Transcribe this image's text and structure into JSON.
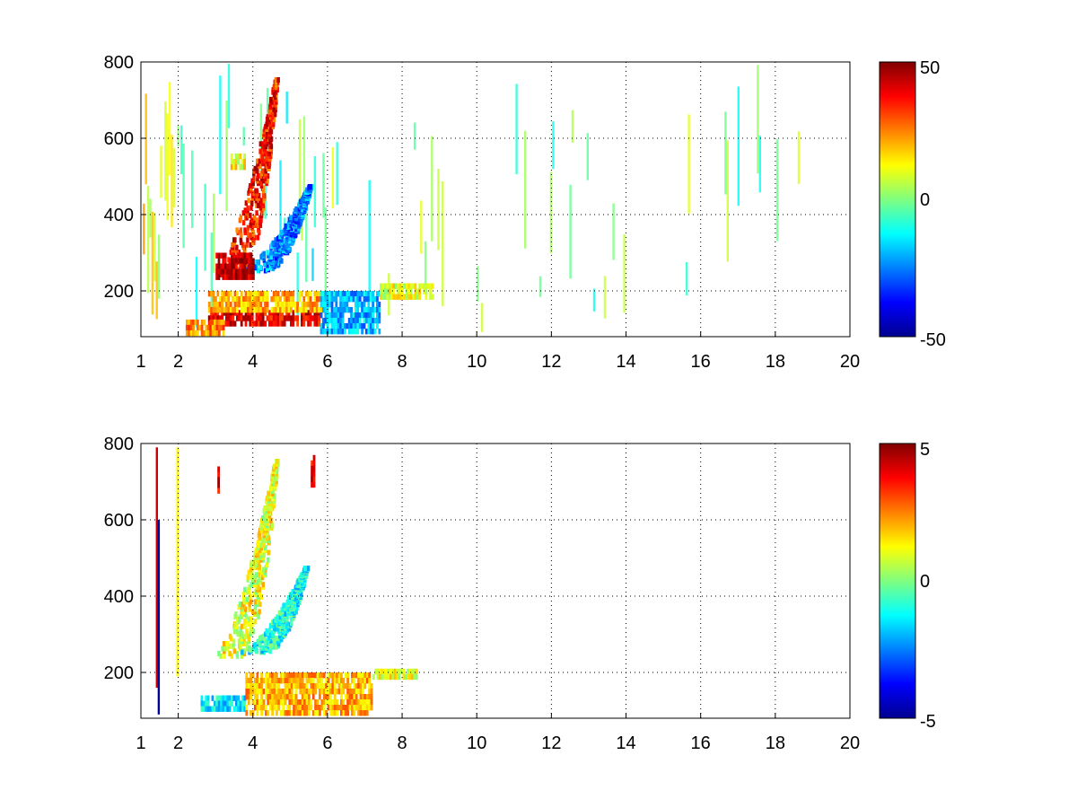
{
  "chart_data": [
    {
      "type": "heatmap",
      "title": "",
      "xlabel": "",
      "ylabel": "",
      "xlim": [
        1,
        20
      ],
      "ylim": [
        80,
        800
      ],
      "x_ticks": [
        "1",
        "2",
        "4",
        "6",
        "8",
        "10",
        "12",
        "14",
        "16",
        "18",
        "20"
      ],
      "y_ticks": [
        "200",
        "400",
        "600",
        "800"
      ],
      "grid": true,
      "colorbar": {
        "min": -50,
        "max": 50,
        "ticks": [
          "50",
          "0",
          "-50"
        ],
        "colormap": "jet"
      },
      "features": [
        {
          "kind": "vband",
          "x": [
            1.05,
            2.0
          ],
          "y": [
            80,
            800
          ],
          "value": 10,
          "density": 0.9
        },
        {
          "kind": "vband",
          "x": [
            2.0,
            3.5
          ],
          "y": [
            80,
            800
          ],
          "value": -5,
          "density": 0.45
        },
        {
          "kind": "vband",
          "x": [
            3.5,
            6.0
          ],
          "y": [
            80,
            800
          ],
          "value": -5,
          "density": 0.35
        },
        {
          "kind": "vband",
          "x": [
            6.0,
            10.0
          ],
          "y": [
            80,
            800
          ],
          "value": 0,
          "density": 0.18
        },
        {
          "kind": "vband",
          "x": [
            10.0,
            20.0
          ],
          "y": [
            80,
            800
          ],
          "value": 0,
          "density": 0.1
        },
        {
          "kind": "hband",
          "x": [
            2.8,
            5.8
          ],
          "y": [
            110,
            150
          ],
          "value": 40
        },
        {
          "kind": "hband",
          "x": [
            2.2,
            3.2
          ],
          "y": [
            95,
            125
          ],
          "value": 25
        },
        {
          "kind": "hband",
          "x": [
            2.8,
            6.0
          ],
          "y": [
            150,
            200
          ],
          "value": 20
        },
        {
          "kind": "hband",
          "x": [
            5.8,
            7.4
          ],
          "y": [
            100,
            200
          ],
          "value": -20
        },
        {
          "kind": "hband",
          "x": [
            7.4,
            8.8
          ],
          "y": [
            180,
            220
          ],
          "value": 10
        },
        {
          "kind": "arc",
          "x": [
            3.3,
            4.6
          ],
          "y": [
            250,
            760
          ],
          "value": 35
        },
        {
          "kind": "arc",
          "x": [
            4.0,
            5.5
          ],
          "y": [
            260,
            480
          ],
          "value": -25
        },
        {
          "kind": "blob",
          "x": [
            3.0,
            4.0
          ],
          "y": [
            240,
            300
          ],
          "value": 45
        },
        {
          "kind": "blob",
          "x": [
            3.4,
            3.8
          ],
          "y": [
            520,
            560
          ],
          "value": 12
        }
      ]
    },
    {
      "type": "heatmap",
      "title": "",
      "xlabel": "",
      "ylabel": "",
      "xlim": [
        1,
        20
      ],
      "ylim": [
        80,
        800
      ],
      "x_ticks": [
        "1",
        "2",
        "4",
        "6",
        "8",
        "10",
        "12",
        "14",
        "16",
        "18",
        "20"
      ],
      "y_ticks": [
        "200",
        "400",
        "600",
        "800"
      ],
      "grid": true,
      "colorbar": {
        "min": -5,
        "max": 5,
        "ticks": [
          "5",
          "0",
          "-5"
        ],
        "colormap": "jet"
      },
      "features": [
        {
          "kind": "vline",
          "x": [
            1.4,
            1.45
          ],
          "y": [
            160,
            790
          ],
          "value": 5
        },
        {
          "kind": "vline",
          "x": [
            1.45,
            1.5
          ],
          "y": [
            90,
            600
          ],
          "value": -4
        },
        {
          "kind": "vline",
          "x": [
            1.95,
            2.0
          ],
          "y": [
            190,
            790
          ],
          "value": 2
        },
        {
          "kind": "arc",
          "x": [
            3.3,
            4.6
          ],
          "y": [
            250,
            760
          ],
          "value": 1
        },
        {
          "kind": "arc",
          "x": [
            4.0,
            5.4
          ],
          "y": [
            260,
            480
          ],
          "value": -1
        },
        {
          "kind": "hband",
          "x": [
            2.6,
            3.8
          ],
          "y": [
            100,
            140
          ],
          "value": -1.5
        },
        {
          "kind": "hband",
          "x": [
            3.8,
            7.2
          ],
          "y": [
            100,
            200
          ],
          "value": 2
        },
        {
          "kind": "hband",
          "x": [
            7.2,
            8.4
          ],
          "y": [
            185,
            210
          ],
          "value": 1
        },
        {
          "kind": "blob",
          "x": [
            5.55,
            5.65
          ],
          "y": [
            690,
            770
          ],
          "value": 4
        },
        {
          "kind": "blob",
          "x": [
            3.05,
            3.1
          ],
          "y": [
            680,
            740
          ],
          "value": 4
        }
      ]
    }
  ]
}
